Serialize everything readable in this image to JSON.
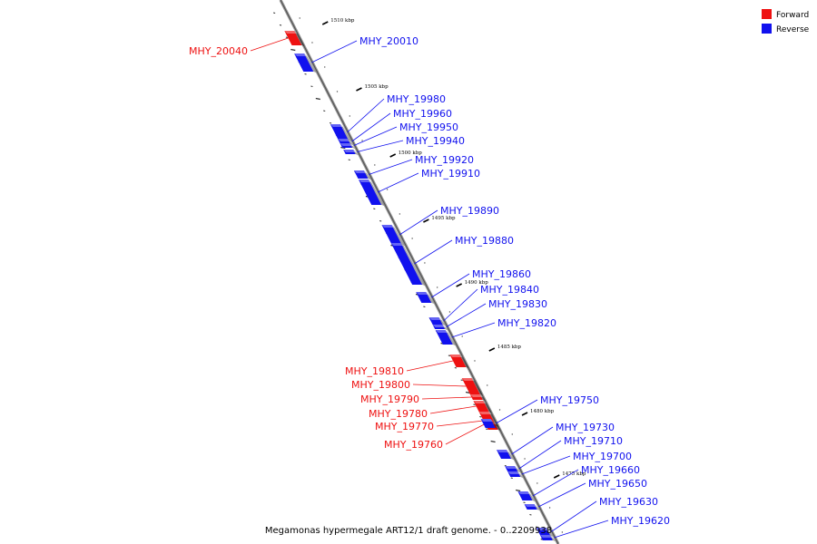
{
  "caption": "Megamonas hypermegale ART12/1 draft genome. - 0..2209938",
  "legend": [
    {
      "name": "Forward",
      "color": "#ee1111"
    },
    {
      "name": "Reverse",
      "color": "#1111ee"
    }
  ],
  "axis": {
    "unit": "kbp",
    "ticks": [
      {
        "value": 1510,
        "label": "1510 kbp"
      },
      {
        "value": 1505,
        "label": "1505 kbp"
      },
      {
        "value": 1500,
        "label": "1500 kbp"
      },
      {
        "value": 1495,
        "label": "1495 kbp"
      },
      {
        "value": 1490,
        "label": "1490 kbp"
      },
      {
        "value": 1485,
        "label": "1485 kbp"
      },
      {
        "value": 1480,
        "label": "1480 kbp"
      },
      {
        "value": 1475,
        "label": "1475 kbp"
      }
    ]
  },
  "genes": [
    {
      "name": "MHY_20040",
      "strand": "forward"
    },
    {
      "name": "MHY_20010",
      "strand": "reverse"
    },
    {
      "name": "MHY_19980",
      "strand": "reverse"
    },
    {
      "name": "MHY_19960",
      "strand": "reverse"
    },
    {
      "name": "MHY_19950",
      "strand": "reverse"
    },
    {
      "name": "MHY_19940",
      "strand": "reverse"
    },
    {
      "name": "MHY_19920",
      "strand": "reverse"
    },
    {
      "name": "MHY_19910",
      "strand": "reverse"
    },
    {
      "name": "MHY_19890",
      "strand": "reverse"
    },
    {
      "name": "MHY_19880",
      "strand": "reverse"
    },
    {
      "name": "MHY_19860",
      "strand": "reverse"
    },
    {
      "name": "MHY_19840",
      "strand": "reverse"
    },
    {
      "name": "MHY_19830",
      "strand": "reverse"
    },
    {
      "name": "MHY_19820",
      "strand": "reverse"
    },
    {
      "name": "MHY_19810",
      "strand": "forward"
    },
    {
      "name": "MHY_19800",
      "strand": "forward"
    },
    {
      "name": "MHY_19790",
      "strand": "forward"
    },
    {
      "name": "MHY_19780",
      "strand": "forward"
    },
    {
      "name": "MHY_19770",
      "strand": "forward"
    },
    {
      "name": "MHY_19760",
      "strand": "forward"
    },
    {
      "name": "MHY_19750",
      "strand": "reverse"
    },
    {
      "name": "MHY_19730",
      "strand": "reverse"
    },
    {
      "name": "MHY_19710",
      "strand": "reverse"
    },
    {
      "name": "MHY_19700",
      "strand": "reverse"
    },
    {
      "name": "MHY_19660",
      "strand": "reverse"
    },
    {
      "name": "MHY_19650",
      "strand": "reverse"
    },
    {
      "name": "MHY_19630",
      "strand": "reverse"
    },
    {
      "name": "MHY_19620",
      "strand": "reverse"
    }
  ]
}
